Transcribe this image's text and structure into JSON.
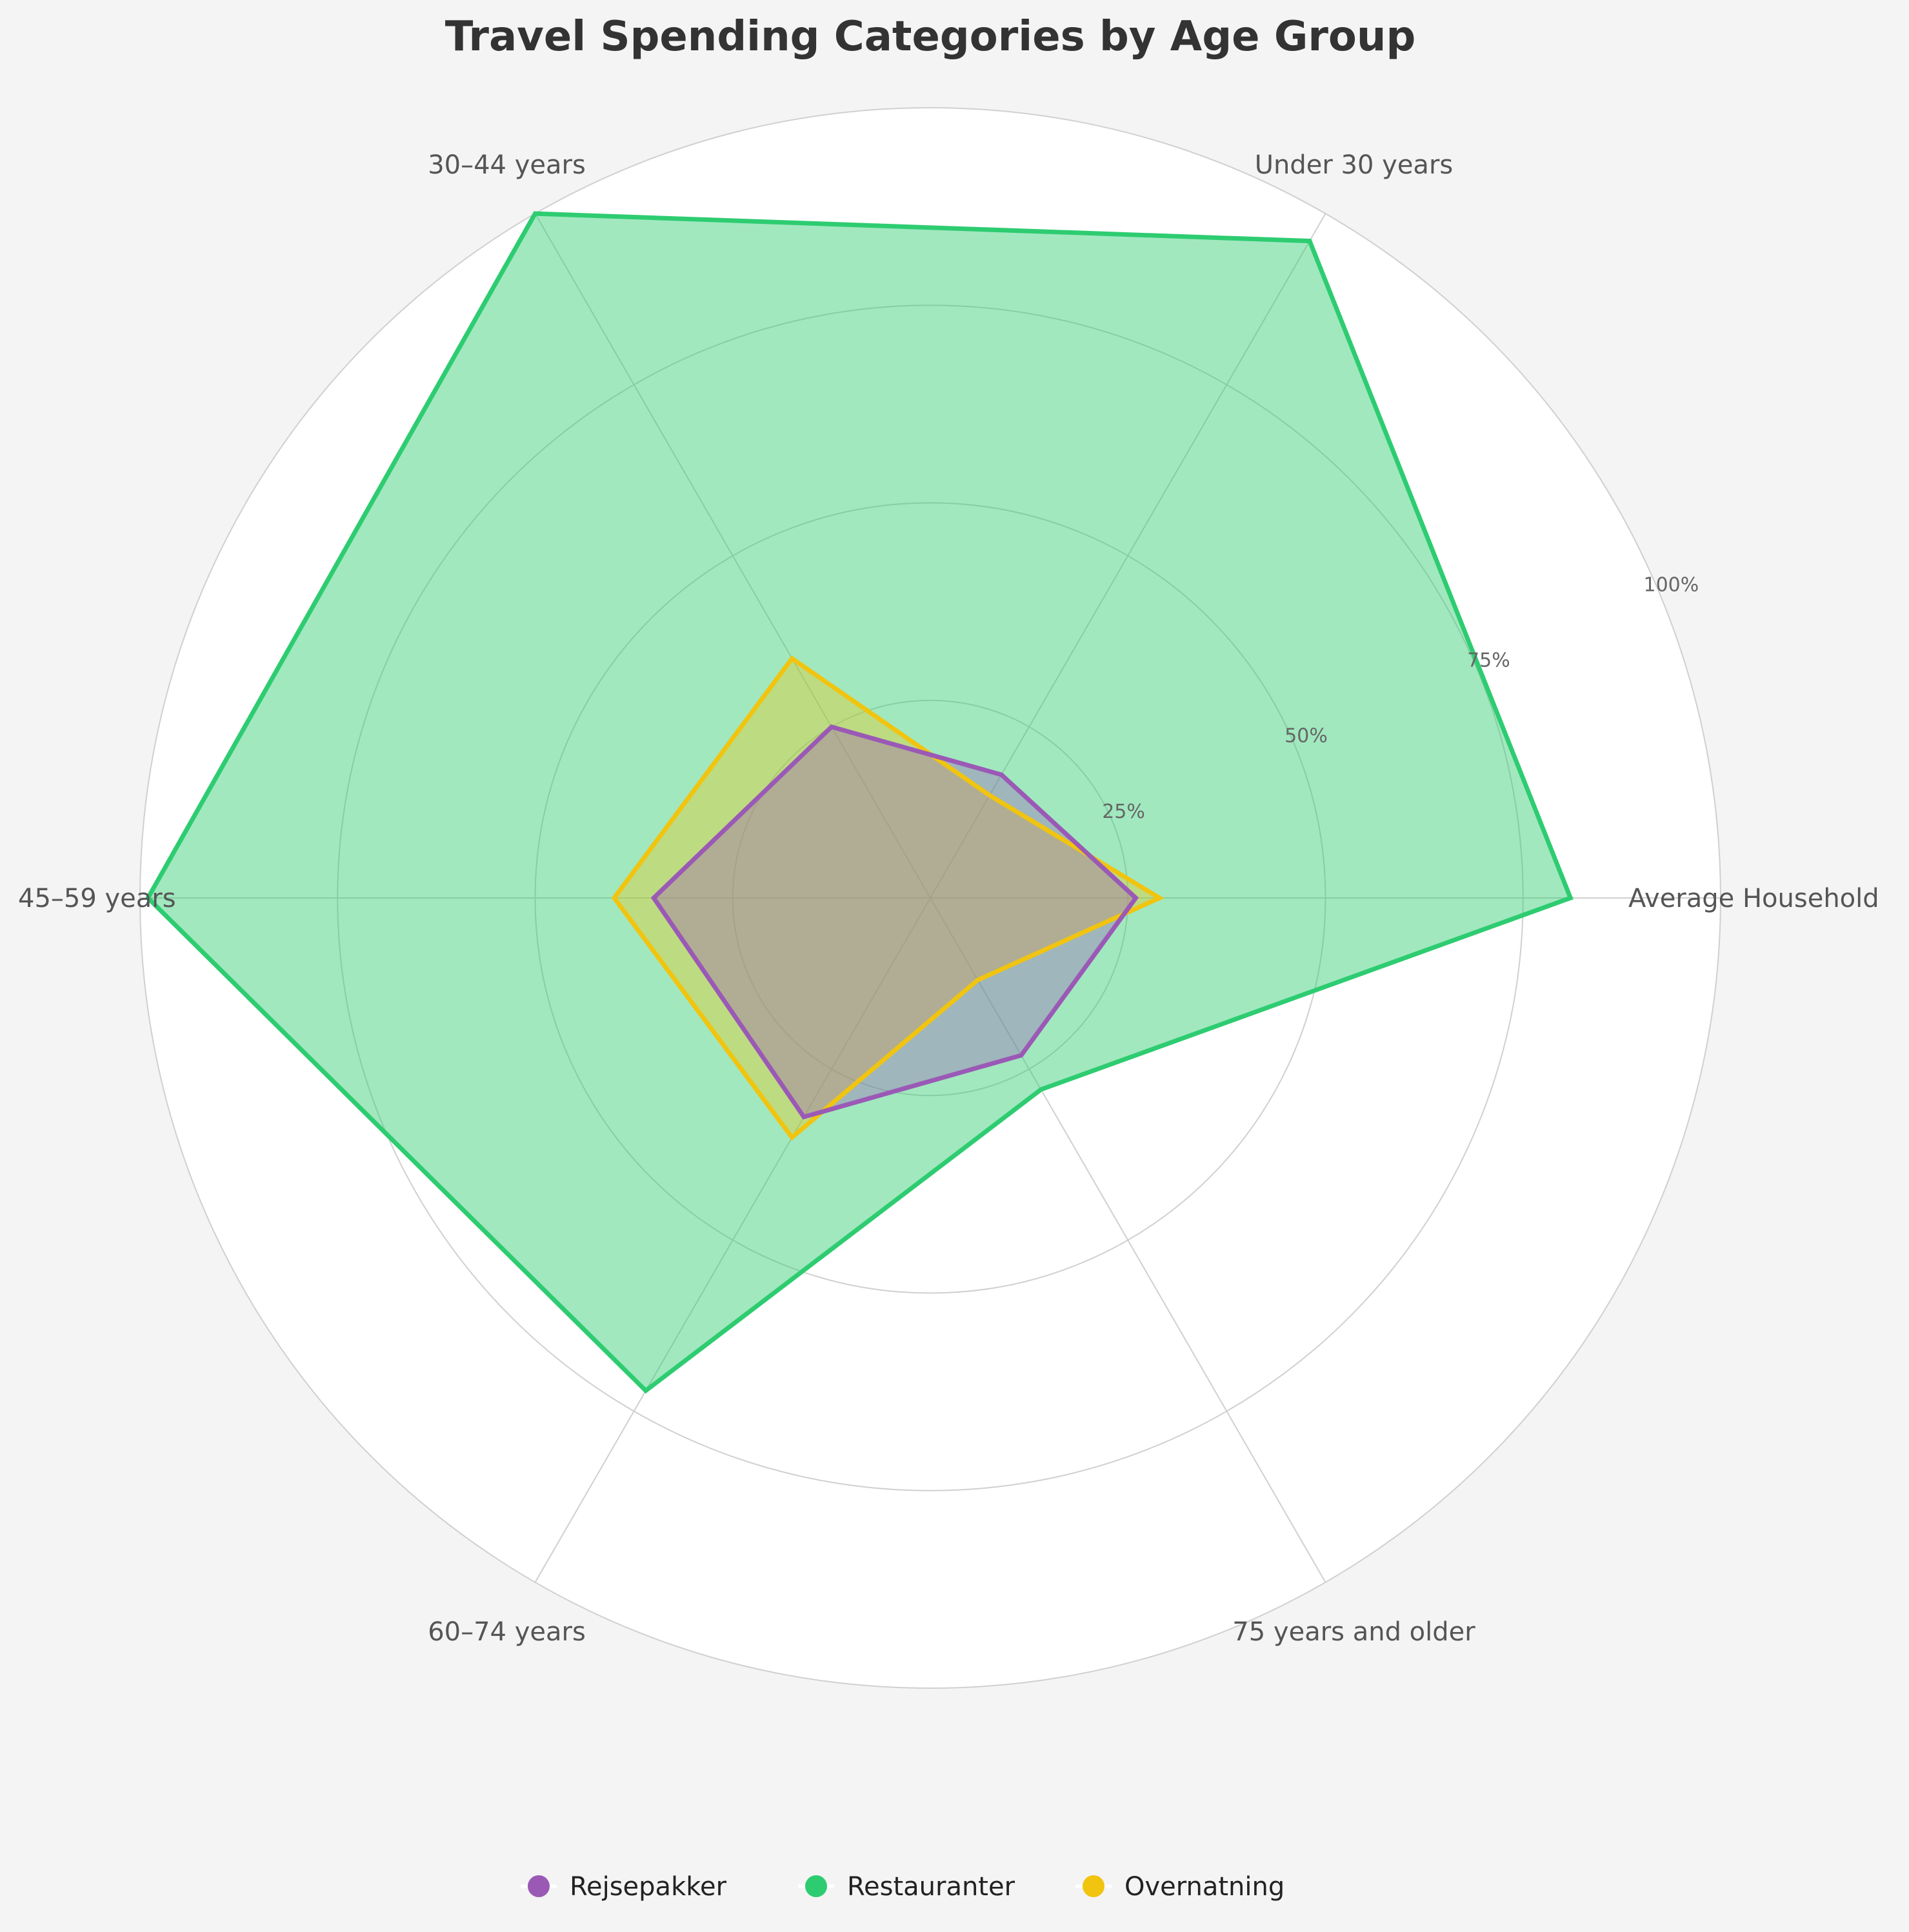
{
  "chart_data": {
    "type": "radar",
    "title": "Travel Spending Categories by Age Group",
    "categories": [
      "Average Household",
      "Under 30 years",
      "30–44 years",
      "45–59 years",
      "60–74 years",
      "75 years and older"
    ],
    "rlim": [
      0,
      100
    ],
    "rticks": [
      25,
      50,
      75,
      100
    ],
    "rtick_labels": [
      "25%",
      "50%",
      "75%",
      "100%"
    ],
    "grid": true,
    "legend_position": "bottom-center",
    "series": [
      {
        "name": "Restauranter",
        "color": "#2ecc71",
        "fill_opacity": 0.45,
        "values": [
          81,
          96,
          100,
          99,
          72,
          28
        ]
      },
      {
        "name": "Overnatning",
        "color": "#f1c40f",
        "fill_opacity": 0.35,
        "values": [
          29,
          15,
          35,
          40,
          35,
          12
        ]
      },
      {
        "name": "Rejsepakker",
        "color": "#9b59b6",
        "fill_opacity": 0.35,
        "values": [
          26,
          18,
          25,
          35,
          32,
          23
        ]
      }
    ],
    "legend_order": [
      "Rejsepakker",
      "Restauranter",
      "Overnatning"
    ]
  }
}
